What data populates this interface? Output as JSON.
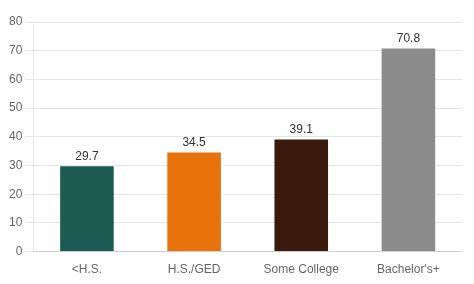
{
  "chart_data": {
    "type": "bar",
    "categories": [
      "<H.S.",
      "H.S./GED",
      "Some College",
      "Bachelor's+"
    ],
    "values": [
      29.7,
      34.5,
      39.1,
      70.8
    ],
    "colors": [
      "#1a5c52",
      "#e8720c",
      "#3b1a0e",
      "#8c8c8c"
    ],
    "ylim": [
      0,
      80
    ],
    "yticks": [
      0,
      10,
      20,
      30,
      40,
      50,
      60,
      70,
      80
    ],
    "grid": true,
    "data_labels": true
  }
}
